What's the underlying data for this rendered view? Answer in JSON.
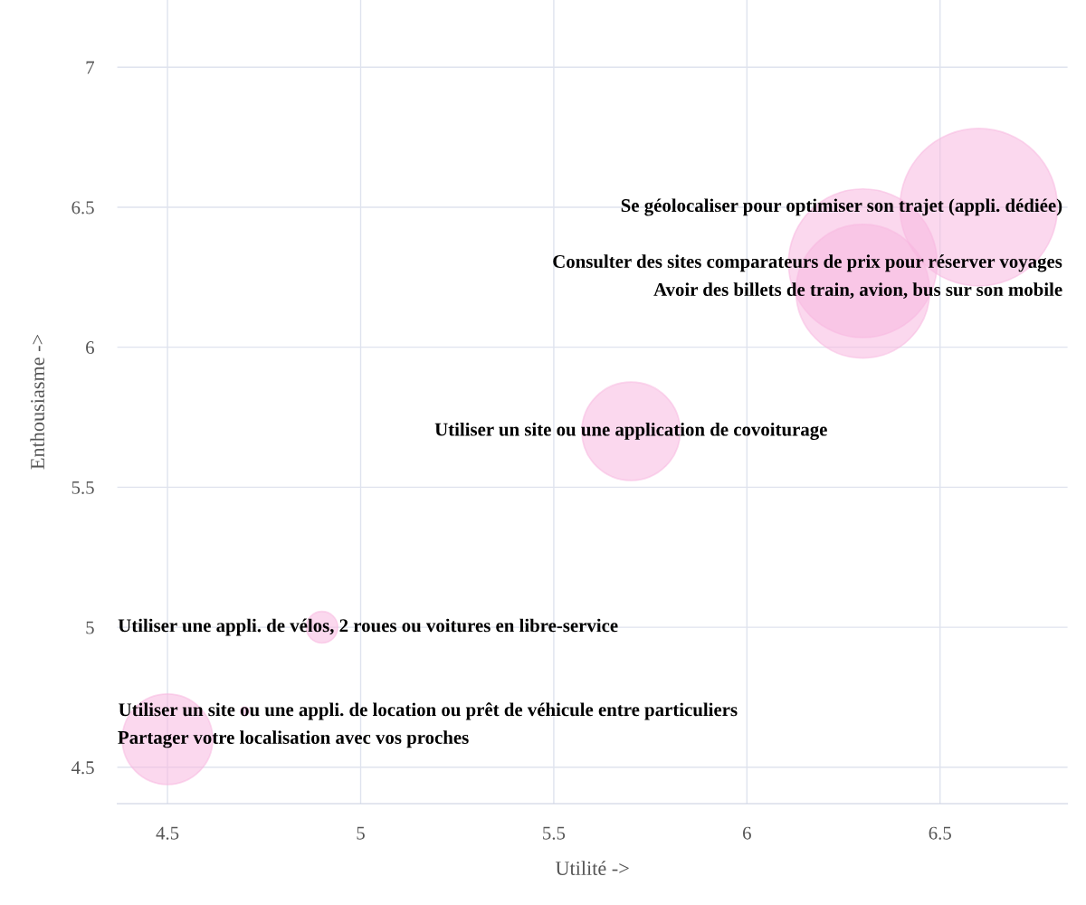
{
  "chart_data": {
    "type": "bubble",
    "xlabel": "Utilité ->",
    "ylabel": "Enthousiasme ->",
    "series": [
      {
        "color": "#f7b8e0",
        "x": [
          6.6,
          6.3,
          6.3,
          5.7,
          4.9,
          4.7,
          4.5
        ],
        "values": [
          6.5,
          6.3,
          6.2,
          5.7,
          5.0,
          4.7,
          4.6
        ],
        "sizes": [
          1,
          0.89,
          0.72,
          0.39,
          0.04,
          0.003,
          0.33
        ]
      }
    ],
    "annotations": [
      {
        "text": "Se géolocaliser pour optimiser son trajet (appli. dédiée)",
        "x": 6.6,
        "y": 6.5
      },
      {
        "text": "Consulter des sites comparateurs de prix pour réserver voyages",
        "x": 6.3,
        "y": 6.3
      },
      {
        "text": "Avoir des billets de train, avion, bus sur son mobile",
        "x": 6.3,
        "y": 6.2
      },
      {
        "text": "Utiliser un site ou une application de covoiturage",
        "x": 5.7,
        "y": 5.7
      },
      {
        "text": "Utiliser une appli. de vélos, 2 roues ou voitures en libre-service",
        "x": 4.9,
        "y": 5.0
      },
      {
        "text": "Utiliser un site ou une appli. de location ou prêt de véhicule entre particuliers",
        "x": 4.7,
        "y": 4.7
      },
      {
        "text": "Partager votre localisation avec vos proches",
        "x": 4.5,
        "y": 4.6
      }
    ],
    "xlim": [
      4.37,
      6.83
    ],
    "ylim": [
      4.37,
      7.24
    ],
    "xticks": [
      4.5,
      5,
      5.5,
      6,
      6.5
    ],
    "yticks": [
      4.5,
      5,
      5.5,
      6,
      6.5,
      7
    ],
    "grid": true
  }
}
